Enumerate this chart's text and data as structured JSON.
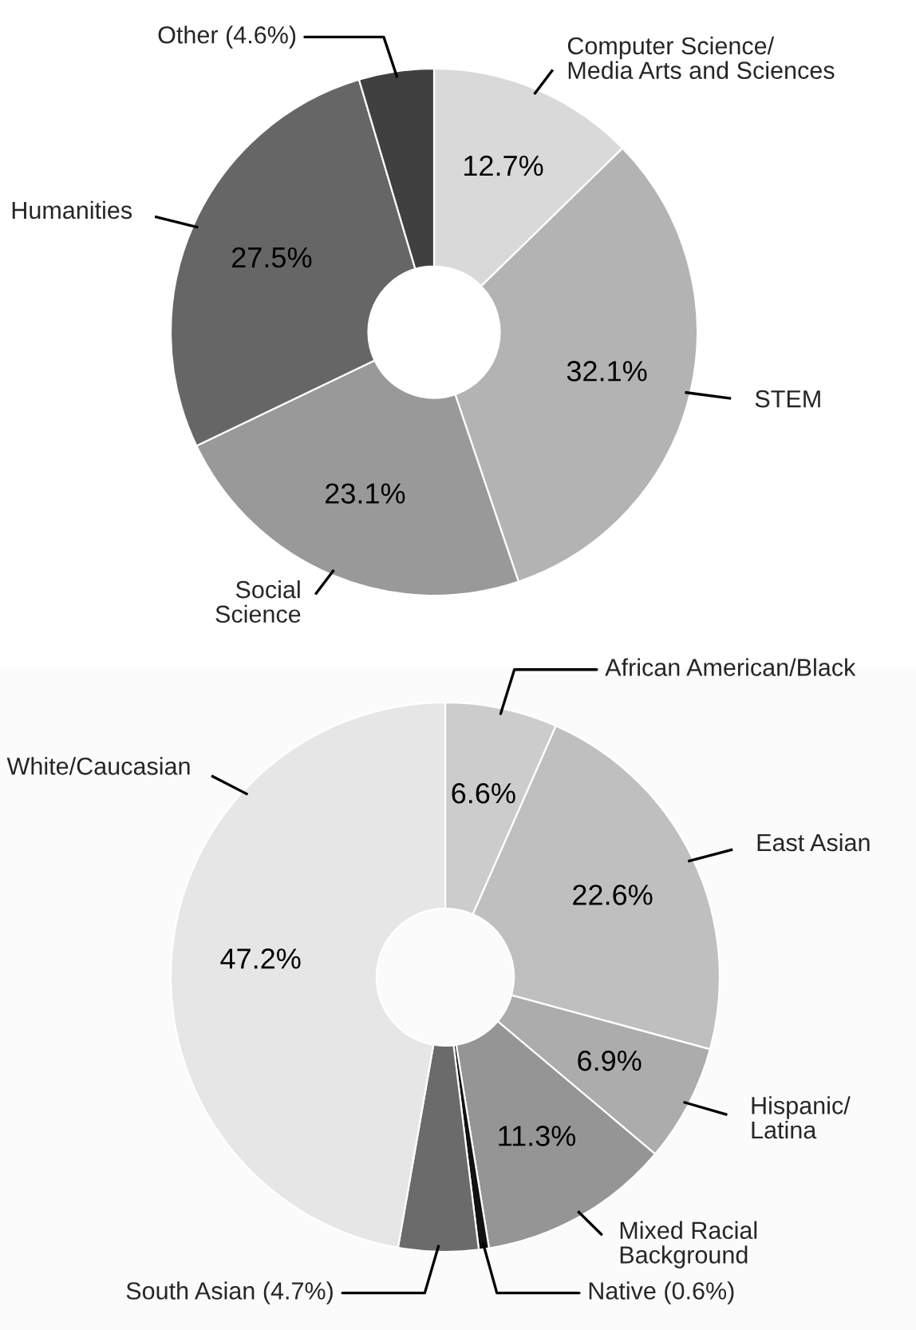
{
  "chart_data": [
    {
      "type": "donut",
      "categories": [
        "Computer Science/\nMedia Arts and Sciences",
        "STEM",
        "Social\nScience",
        "Humanities",
        "Other (4.6%)"
      ],
      "values": [
        12.7,
        32.1,
        23.1,
        27.5,
        4.6
      ],
      "colors": [
        "#d9d9d9",
        "#b3b3b3",
        "#999999",
        "#666666",
        "#404040"
      ],
      "value_labels": [
        "12.7%",
        "32.1%",
        "23.1%",
        "27.5%",
        null
      ]
    },
    {
      "type": "donut",
      "categories": [
        "African American/Black",
        "East Asian",
        "Hispanic/\nLatina",
        "Mixed Racial\nBackground",
        "Native (0.6%)",
        "South Asian (4.7%)",
        "White/Caucasian"
      ],
      "values": [
        6.6,
        22.6,
        6.9,
        11.3,
        0.6,
        4.7,
        47.2
      ],
      "colors": [
        "#cccccc",
        "#bfbfbf",
        "#acacac",
        "#959595",
        "#111111",
        "#6b6b6b",
        "#e6e6e6"
      ],
      "value_labels": [
        "6.6%",
        "22.6%",
        "6.9%",
        "11.3%",
        null,
        null,
        "47.2%"
      ]
    }
  ]
}
